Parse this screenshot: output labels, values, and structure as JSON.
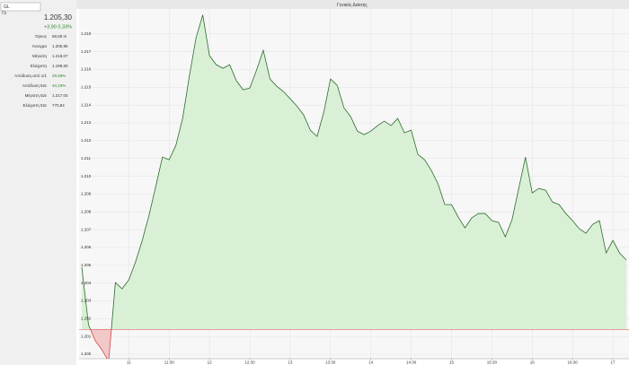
{
  "search": {
    "value": "GL",
    "code": "ΓΔ"
  },
  "panel": {
    "price": "1.205,30",
    "change": "+3,90  0,33%",
    "rows": [
      [
        "Όγκος",
        "58,59 m"
      ],
      [
        "Άνοιγμα",
        "1.205,95"
      ],
      [
        "Μέγιστη",
        "1.219,07"
      ],
      [
        "Ελάχιστη",
        "1.199,60"
      ],
      [
        "Απόδοση από 1/1",
        "29,69%"
      ],
      [
        "Απόδοση 52ε",
        "40,19%"
      ],
      [
        "Μέγιστη 52ε",
        "1.217,04"
      ],
      [
        "Ελάχιστη 52ε",
        "770,84"
      ]
    ]
  },
  "chart_data": {
    "type": "area",
    "title": "Γενικός Δείκτης",
    "subtitle": "1.205,30 (0, +3,90 (+0,33%)",
    "x": [
      625,
      630,
      635,
      640,
      645,
      650,
      655,
      660,
      665,
      670,
      675,
      680,
      685,
      690,
      695,
      700,
      705,
      710,
      715,
      720,
      725,
      730,
      735,
      740,
      745,
      750,
      755,
      760,
      765,
      770,
      775,
      780,
      785,
      790,
      795,
      800,
      805,
      810,
      815,
      820,
      825,
      830,
      835,
      840,
      845,
      850,
      855,
      860,
      865,
      870,
      875,
      880,
      885,
      890,
      895,
      900,
      905,
      910,
      915,
      920,
      925,
      930,
      935,
      940,
      945,
      950,
      955,
      960,
      965,
      970,
      975,
      980,
      985,
      990,
      995,
      1000,
      1005,
      1010,
      1015,
      1020,
      1025,
      1030
    ],
    "values": [
      1204.9,
      1201.66,
      1200.76,
      1200.25,
      1199.6,
      1204.03,
      1203.68,
      1204.18,
      1205.19,
      1206.4,
      1207.81,
      1209.42,
      1211.08,
      1210.93,
      1211.74,
      1213.25,
      1215.62,
      1217.78,
      1219.07,
      1216.78,
      1216.27,
      1216.07,
      1216.27,
      1215.37,
      1214.86,
      1214.96,
      1215.97,
      1217.08,
      1215.47,
      1215.06,
      1214.76,
      1214.36,
      1213.95,
      1213.45,
      1212.59,
      1212.24,
      1213.6,
      1215.47,
      1215.11,
      1213.85,
      1213.35,
      1212.54,
      1212.34,
      1212.54,
      1212.85,
      1213.1,
      1212.85,
      1213.25,
      1212.44,
      1212.59,
      1211.23,
      1210.93,
      1210.33,
      1209.57,
      1208.41,
      1208.41,
      1207.71,
      1207.1,
      1207.66,
      1207.91,
      1207.91,
      1207.51,
      1207.41,
      1206.6,
      1207.56,
      1209.32,
      1211.08,
      1209.07,
      1209.32,
      1209.22,
      1208.56,
      1208.41,
      1207.91,
      1207.51,
      1207.05,
      1206.8,
      1207.3,
      1207.51,
      1205.69,
      1206.4,
      1205.69,
      1205.3
    ],
    "color": "#2e6b2e",
    "up_fill": "#d9f0d6",
    "down_fill": "#f2c8c8",
    "reference_line": 1201.4,
    "reference_color": "#d04848",
    "grid": true,
    "xlim": [
      623,
      1032
    ],
    "xticks": [
      {
        "value": 660,
        "label": "11"
      },
      {
        "value": 690,
        "label": "11:30"
      },
      {
        "value": 720,
        "label": "12"
      },
      {
        "value": 750,
        "label": "12:30"
      },
      {
        "value": 780,
        "label": "13"
      },
      {
        "value": 810,
        "label": "13:30"
      },
      {
        "value": 840,
        "label": "14"
      },
      {
        "value": 870,
        "label": "14:30"
      },
      {
        "value": 900,
        "label": "15"
      },
      {
        "value": 930,
        "label": "15:30"
      },
      {
        "value": 960,
        "label": "16"
      },
      {
        "value": 990,
        "label": "16:30"
      },
      {
        "value": 1020,
        "label": "17"
      }
    ],
    "ylim": [
      1199.75,
      1219.1
    ],
    "yticks": [
      {
        "value": 1200,
        "label": "1.200"
      },
      {
        "value": 1201,
        "label": "1.201"
      },
      {
        "value": 1202,
        "label": "1.202"
      },
      {
        "value": 1203,
        "label": "1.203"
      },
      {
        "value": 1204,
        "label": "1.204"
      },
      {
        "value": 1205,
        "label": "1.205"
      },
      {
        "value": 1206,
        "label": "1.206"
      },
      {
        "value": 1207,
        "label": "1.207"
      },
      {
        "value": 1208,
        "label": "1.208"
      },
      {
        "value": 1209,
        "label": "1.209"
      },
      {
        "value": 1210,
        "label": "1.210"
      },
      {
        "value": 1211,
        "label": "1.211"
      },
      {
        "value": 1212,
        "label": "1.212"
      },
      {
        "value": 1213,
        "label": "1.213"
      },
      {
        "value": 1214,
        "label": "1.214"
      },
      {
        "value": 1215,
        "label": "1.215"
      },
      {
        "value": 1216,
        "label": "1.216"
      },
      {
        "value": 1217,
        "label": "1.217"
      },
      {
        "value": 1218,
        "label": "1.218"
      }
    ]
  }
}
